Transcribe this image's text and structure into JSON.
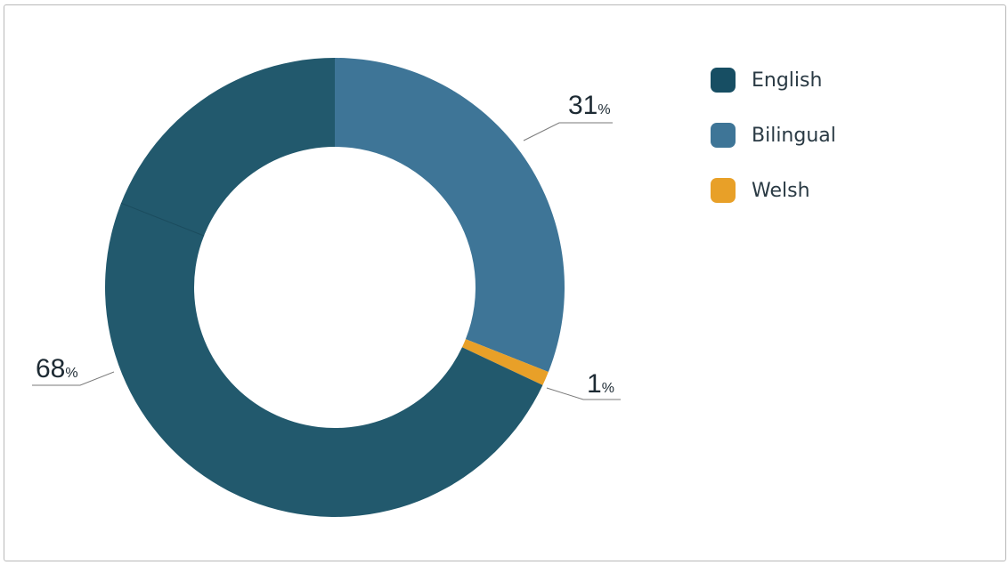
{
  "chart_data": {
    "type": "pie",
    "title": "",
    "categories": [
      "English",
      "Bilingual",
      "Welsh"
    ],
    "values": [
      68,
      31,
      1
    ],
    "data_labels": [
      "68",
      "31",
      "1"
    ],
    "unit": "%",
    "colors": [
      "#22596d",
      "#3e7597",
      "#e8a028"
    ],
    "legend_swatch_colors": [
      "#174e63",
      "#3e7597",
      "#e8a028"
    ],
    "legend_position": "top-right",
    "donut": true
  }
}
